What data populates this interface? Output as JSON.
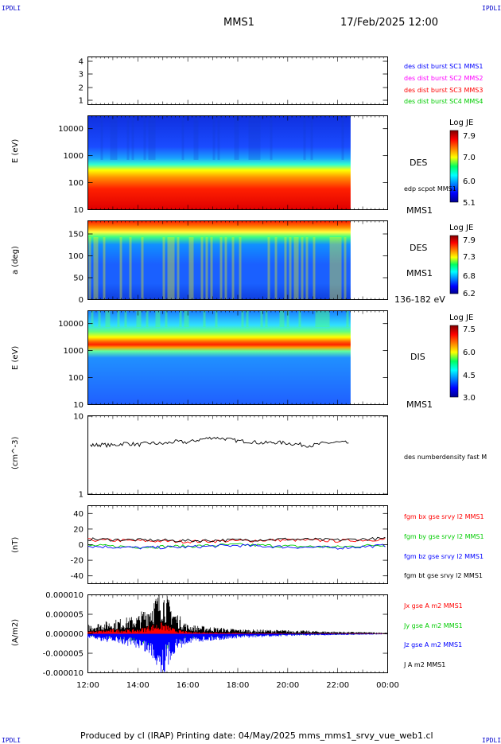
{
  "corner_label": "IPDLI",
  "header": {
    "spacecraft": "MMS1",
    "datetime": "17/Feb/2025 12:00"
  },
  "footer": {
    "text": "Produced by cl (IRAP)   Printing date: 04/May/2025   mms_mms1_srvy_vue_web1.cl"
  },
  "time_axis": {
    "ticks": [
      "12:00",
      "14:00",
      "16:00",
      "18:00",
      "20:00",
      "22:00",
      "00:00"
    ]
  },
  "colors": {
    "c1": "#0000ff",
    "c2": "#ff00ff",
    "c3": "#ff0000",
    "c4": "#00cc00",
    "bx": "#ff0000",
    "by": "#00cc00",
    "bz": "#0000ff",
    "bt": "#000000"
  },
  "panels": {
    "burst": {
      "y_ticks": [
        "4",
        "3",
        "2",
        "1"
      ],
      "legend": [
        "des dist burst SC1 MMS1",
        "des dist burst SC2 MMS2",
        "des dist burst SC3 MMS3",
        "des dist burst SC4 MMS4"
      ]
    },
    "des_energy": {
      "ylabel": "E (eV)",
      "y_ticks": [
        "10000",
        "1000",
        "100",
        "10"
      ],
      "label": "DES",
      "overlay": "edp scpot MMS1",
      "spacecraft": "MMS1",
      "colorbar": {
        "title": "Log JE",
        "ticks": [
          "7.9",
          "7.0",
          "6.0",
          "5.1"
        ]
      }
    },
    "des_pitch": {
      "ylabel": "a (deg)",
      "y_ticks": [
        "150",
        "100",
        "50",
        "0"
      ],
      "label": "DES",
      "spacecraft": "MMS1",
      "energy_range": "136-182 eV",
      "colorbar": {
        "title": "Log JE",
        "ticks": [
          "7.9",
          "7.3",
          "6.8",
          "6.2"
        ]
      }
    },
    "dis_energy": {
      "ylabel": "E (eV)",
      "y_ticks": [
        "10000",
        "1000",
        "100",
        "10"
      ],
      "label": "DIS",
      "spacecraft": "MMS1",
      "colorbar": {
        "title": "Log JE",
        "ticks": [
          "7.5",
          "6.0",
          "4.5",
          "3.0"
        ]
      }
    },
    "density": {
      "ylabel": "(cm^-3)",
      "y_ticks": [
        "10",
        "1"
      ],
      "legend": "des numberdensity fast M"
    },
    "bfield": {
      "ylabel": "(nT)",
      "y_ticks": [
        "40",
        "20",
        "0",
        "-20",
        "-40"
      ],
      "legend": [
        "fgm bx gse srvy l2 MMS1",
        "fgm by gse srvy l2 MMS1",
        "fgm bz gse srvy l2 MMS1",
        "fgm bt gse srvy l2 MMS1"
      ]
    },
    "current": {
      "ylabel": "(A/m2)",
      "y_ticks": [
        "0.000010",
        "0.000005",
        "0.000000",
        "-0.000005",
        "-0.000010"
      ],
      "legend": [
        "Jx gse A m2 MMS1",
        "Jy gse A m2 MMS1",
        "Jz gse A m2 MMS1",
        "J A m2 MMS1"
      ]
    }
  },
  "chart_data": [
    {
      "type": "scatter",
      "title": "",
      "y_range": [
        0.5,
        4.5
      ],
      "x_range": [
        "12:00",
        "00:00"
      ],
      "series": [],
      "note_visible": ""
    },
    {
      "type": "heatmap",
      "x_range_hours": [
        12,
        24
      ],
      "data_end_hour": 22.5,
      "y_range": [
        10,
        30000
      ],
      "y_scale": "log",
      "z_range": [
        5.1,
        7.9
      ]
    },
    {
      "type": "heatmap",
      "x_range_hours": [
        12,
        24
      ],
      "data_end_hour": 22.5,
      "y_range": [
        0,
        180
      ],
      "z_range": [
        6.2,
        7.9
      ]
    },
    {
      "type": "heatmap",
      "x_range_hours": [
        12,
        24
      ],
      "data_end_hour": 22.5,
      "y_range": [
        10,
        30000
      ],
      "y_scale": "log",
      "z_range": [
        3.0,
        7.5
      ]
    },
    {
      "type": "line",
      "x_range_hours": [
        12,
        24
      ],
      "y_range": [
        1,
        10
      ],
      "y_scale": "log",
      "series": [
        {
          "x": [
            12.1,
            12.5,
            13.0,
            13.5,
            14.0,
            14.5,
            15.0,
            15.5,
            16.0,
            16.5,
            17.0,
            17.5,
            18.0,
            18.5,
            19.0,
            19.5,
            20.0,
            20.5,
            21.0,
            21.5,
            22.0,
            22.5
          ],
          "y": [
            4.2,
            4.3,
            4.2,
            4.5,
            4.3,
            4.5,
            4.4,
            4.7,
            4.6,
            5.0,
            5.3,
            5.1,
            4.8,
            4.7,
            4.5,
            4.6,
            4.5,
            4.3,
            4.2,
            4.5,
            4.6,
            4.5
          ]
        }
      ]
    },
    {
      "type": "line",
      "x_range_hours": [
        12,
        24
      ],
      "y_range": [
        -50,
        50
      ],
      "series": [
        {
          "x": [
            12,
            14,
            16,
            18,
            20,
            22,
            24
          ],
          "y": [
            6,
            5,
            4,
            5,
            6,
            5,
            7
          ]
        },
        {
          "x": [
            12,
            14,
            16,
            18,
            20,
            22,
            24
          ],
          "y": [
            -1,
            -3,
            -2,
            0,
            -2,
            -3,
            0
          ]
        },
        {
          "x": [
            12,
            14,
            16,
            18,
            20,
            22,
            24
          ],
          "y": [
            -2,
            -4,
            -3,
            -1,
            -3,
            -4,
            -1
          ]
        },
        {
          "x": [
            12,
            14,
            16,
            18,
            20,
            22,
            24
          ],
          "y": [
            7,
            6,
            5,
            6,
            7,
            6,
            8
          ]
        }
      ]
    },
    {
      "type": "line",
      "x_range_hours": [
        12,
        24
      ],
      "y_range": [
        -1e-05,
        1e-05
      ],
      "series": [
        {
          "x": [
            12,
            13,
            14,
            14.5,
            15,
            15.5,
            16,
            18,
            20,
            22,
            24
          ],
          "y": [
            5e-07,
            1e-06,
            1e-06,
            2e-06,
            2.5e-06,
            1e-06,
            5e-07,
            2e-07,
            1e-07,
            1e-07,
            1e-07
          ]
        },
        {
          "x": [
            12,
            13,
            14,
            14.5,
            15,
            15.5,
            16,
            18,
            20,
            22,
            24
          ],
          "y": [
            -5e-07,
            -1e-06,
            -2e-06,
            -3e-06,
            -4e-06,
            -2e-06,
            -1e-06,
            -5e-07,
            -3e-07,
            -2e-07,
            -1e-07
          ]
        },
        {
          "x": [
            12,
            13,
            14,
            14.5,
            15,
            15.5,
            16,
            18,
            20,
            22,
            24
          ],
          "y": [
            -1e-06,
            -2e-06,
            -3e-06,
            -5e-06,
            -9e-06,
            -4e-06,
            -2e-06,
            -1e-06,
            -5e-07,
            -3e-07,
            -1e-07
          ]
        },
        {
          "x": [
            12,
            13,
            14,
            14.5,
            15,
            15.5,
            16,
            18,
            20,
            22,
            24
          ],
          "y": [
            2e-06,
            3e-06,
            4e-06,
            7e-06,
            1e-05,
            5e-06,
            2e-06,
            1e-06,
            8e-07,
            5e-07,
            3e-07
          ]
        }
      ]
    }
  ]
}
